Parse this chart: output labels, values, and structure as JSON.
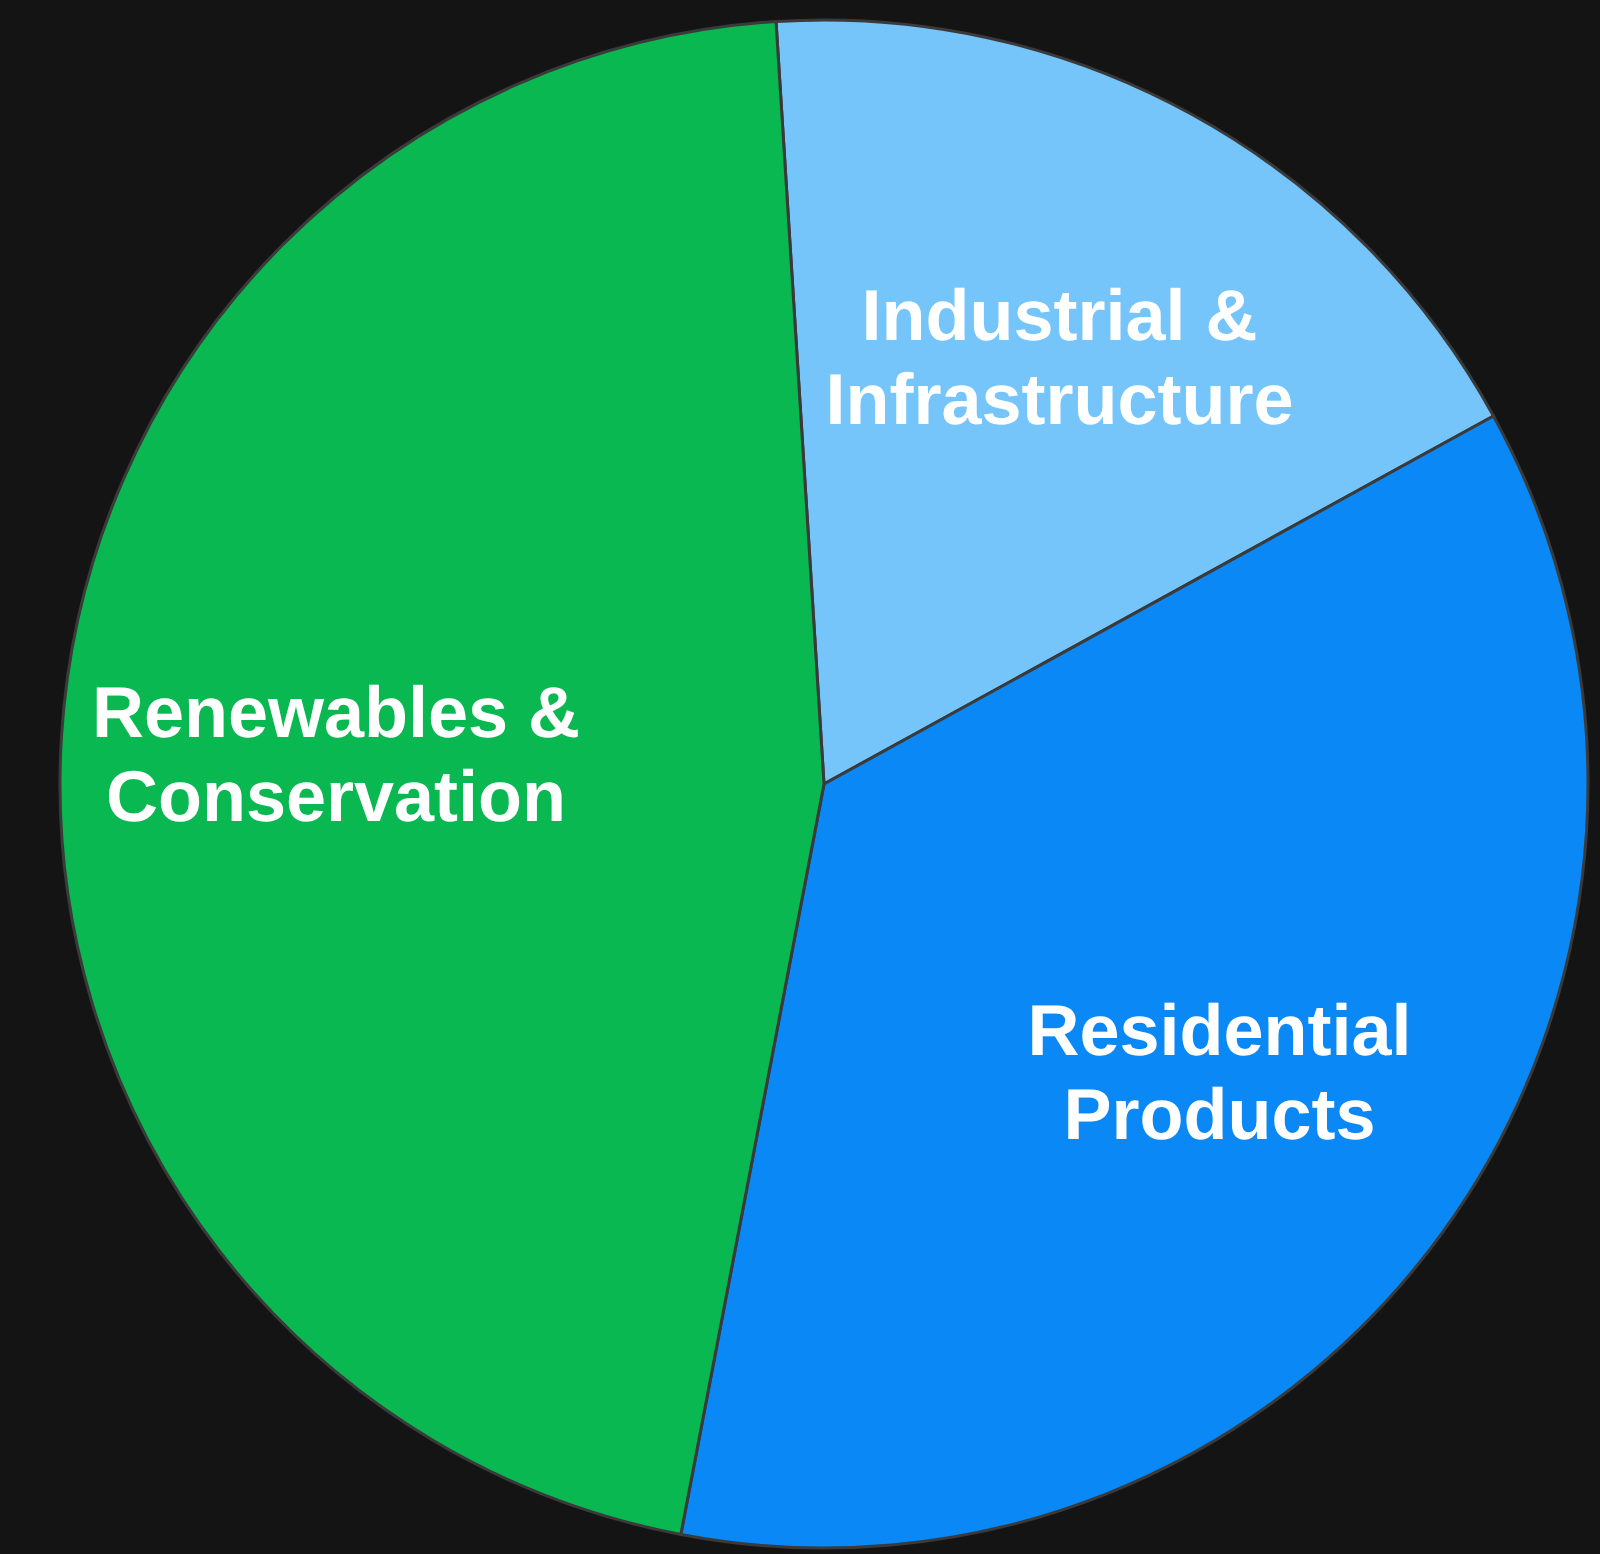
{
  "chart_data": {
    "type": "pie",
    "categories": [
      "Industrial & Infrastructure",
      "Residential Products",
      "Renewables & Conservation"
    ],
    "values": [
      18,
      36,
      46
    ],
    "colors": [
      "#75c5fb",
      "#0a88f5",
      "#09b850"
    ]
  }
}
